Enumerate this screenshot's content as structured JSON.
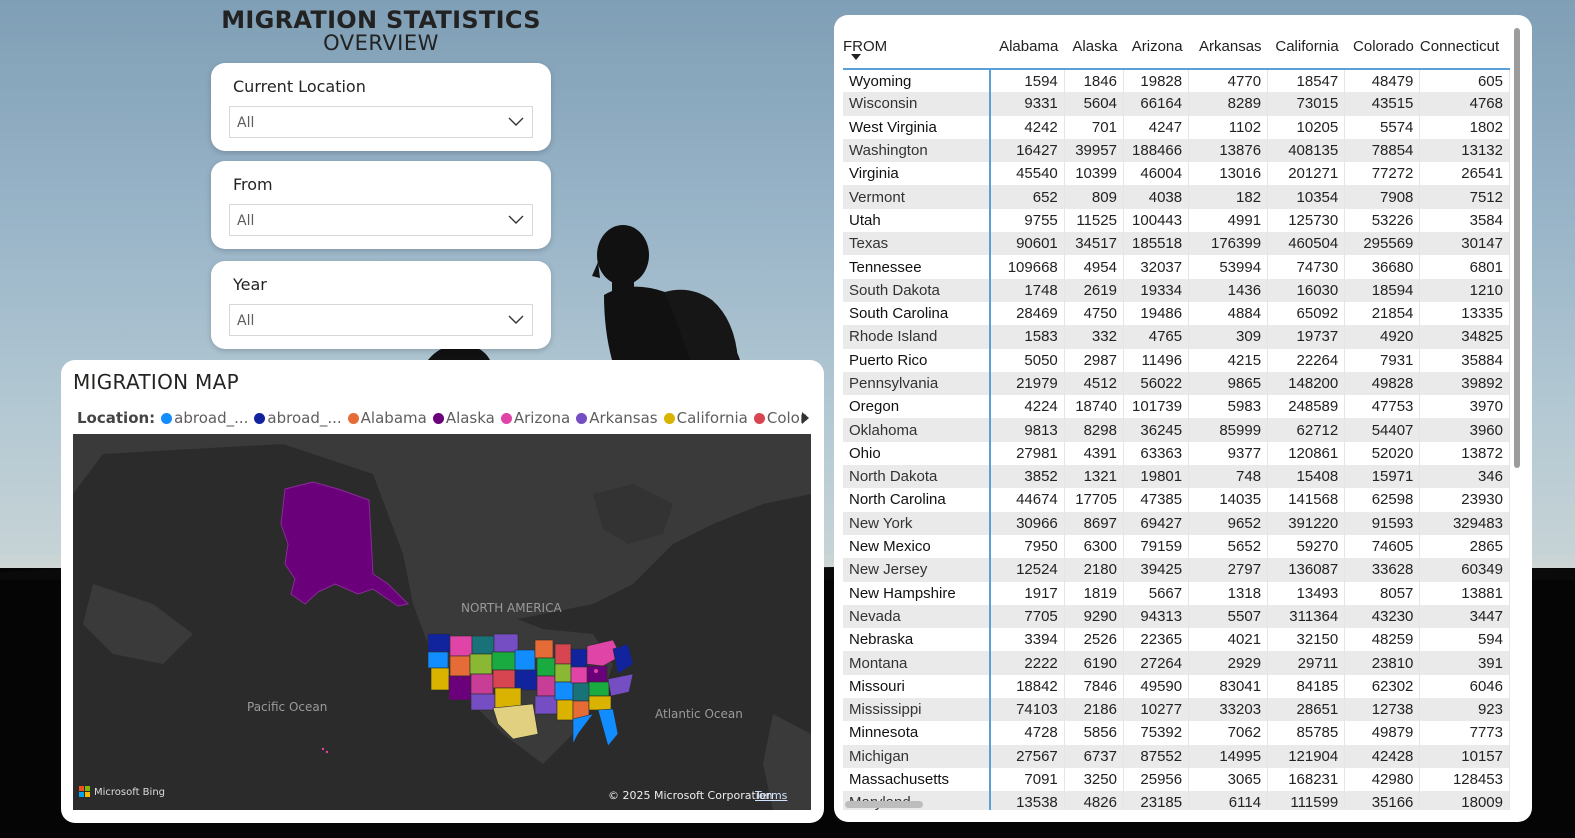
{
  "header": {
    "title": "MIGRATION STATISTICS",
    "subtitle": "OVERVIEW"
  },
  "slicers": [
    {
      "label": "Current Location",
      "value": "All"
    },
    {
      "label": "From",
      "value": "All"
    },
    {
      "label": "Year",
      "value": "All"
    }
  ],
  "map": {
    "title": "MIGRATION MAP",
    "legend_label": "Location:",
    "legend_items": [
      {
        "name": "abroad_...",
        "color": "#118dff"
      },
      {
        "name": "abroad_...",
        "color": "#12239e"
      },
      {
        "name": "Alabama",
        "color": "#e66c37"
      },
      {
        "name": "Alaska",
        "color": "#6b007b"
      },
      {
        "name": "Arizona",
        "color": "#e044a7"
      },
      {
        "name": "Arkansas",
        "color": "#744ec2"
      },
      {
        "name": "California",
        "color": "#d9b300"
      },
      {
        "name": "Colorado",
        "color": "#d64550"
      }
    ],
    "labels": {
      "north_america": "NORTH AMERICA",
      "pacific": "Pacific Ocean",
      "atlantic": "Atlantic Ocean"
    },
    "bing": "Microsoft Bing",
    "copyright": "© 2025 Microsoft Corporation",
    "terms": "Terms"
  },
  "table": {
    "columns": [
      "FROM",
      "Alabama",
      "Alaska",
      "Arizona",
      "Arkansas",
      "California",
      "Colorado",
      "Connecticut"
    ],
    "rows": [
      [
        "Wyoming",
        "1594",
        "1846",
        "19828",
        "4770",
        "18547",
        "48479",
        "605"
      ],
      [
        "Wisconsin",
        "9331",
        "5604",
        "66164",
        "8289",
        "73015",
        "43515",
        "4768"
      ],
      [
        "West Virginia",
        "4242",
        "701",
        "4247",
        "1102",
        "10205",
        "5574",
        "1802"
      ],
      [
        "Washington",
        "16427",
        "39957",
        "188466",
        "13876",
        "408135",
        "78854",
        "13132"
      ],
      [
        "Virginia",
        "45540",
        "10399",
        "46004",
        "13016",
        "201271",
        "77272",
        "26541"
      ],
      [
        "Vermont",
        "652",
        "809",
        "4038",
        "182",
        "10354",
        "7908",
        "7512"
      ],
      [
        "Utah",
        "9755",
        "11525",
        "100443",
        "4991",
        "125730",
        "53226",
        "3584"
      ],
      [
        "Texas",
        "90601",
        "34517",
        "185518",
        "176399",
        "460504",
        "295569",
        "30147"
      ],
      [
        "Tennessee",
        "109668",
        "4954",
        "32037",
        "53994",
        "74730",
        "36680",
        "6801"
      ],
      [
        "South Dakota",
        "1748",
        "2619",
        "19334",
        "1436",
        "16030",
        "18594",
        "1210"
      ],
      [
        "South Carolina",
        "28469",
        "4750",
        "19486",
        "4884",
        "65092",
        "21854",
        "13335"
      ],
      [
        "Rhode Island",
        "1583",
        "332",
        "4765",
        "309",
        "19737",
        "4920",
        "34825"
      ],
      [
        "Puerto Rico",
        "5050",
        "2987",
        "11496",
        "4215",
        "22264",
        "7931",
        "35884"
      ],
      [
        "Pennsylvania",
        "21979",
        "4512",
        "56022",
        "9865",
        "148200",
        "49828",
        "39892"
      ],
      [
        "Oregon",
        "4224",
        "18740",
        "101739",
        "5983",
        "248589",
        "47753",
        "3970"
      ],
      [
        "Oklahoma",
        "9813",
        "8298",
        "36245",
        "85999",
        "62712",
        "54407",
        "3960"
      ],
      [
        "Ohio",
        "27981",
        "4391",
        "63363",
        "9377",
        "120861",
        "52020",
        "13872"
      ],
      [
        "North Dakota",
        "3852",
        "1321",
        "19801",
        "748",
        "15408",
        "15971",
        "346"
      ],
      [
        "North Carolina",
        "44674",
        "17705",
        "47385",
        "14035",
        "141568",
        "62598",
        "23930"
      ],
      [
        "New York",
        "30966",
        "8697",
        "69427",
        "9652",
        "391220",
        "91593",
        "329483"
      ],
      [
        "New Mexico",
        "7950",
        "6300",
        "79159",
        "5652",
        "59270",
        "74605",
        "2865"
      ],
      [
        "New Jersey",
        "12524",
        "2180",
        "39425",
        "2797",
        "136087",
        "33628",
        "60349"
      ],
      [
        "New Hampshire",
        "1917",
        "1819",
        "5667",
        "1318",
        "13493",
        "8057",
        "13881"
      ],
      [
        "Nevada",
        "7705",
        "9290",
        "94313",
        "5507",
        "311364",
        "43230",
        "3447"
      ],
      [
        "Nebraska",
        "3394",
        "2526",
        "22365",
        "4021",
        "32150",
        "48259",
        "594"
      ],
      [
        "Montana",
        "2222",
        "6190",
        "27264",
        "2929",
        "29711",
        "23810",
        "391"
      ],
      [
        "Missouri",
        "18842",
        "7846",
        "49590",
        "83041",
        "84185",
        "62302",
        "6046"
      ],
      [
        "Mississippi",
        "74103",
        "2186",
        "10277",
        "33203",
        "28651",
        "12738",
        "923"
      ],
      [
        "Minnesota",
        "4728",
        "5856",
        "75392",
        "7062",
        "85785",
        "49879",
        "7773"
      ],
      [
        "Michigan",
        "27567",
        "6737",
        "87552",
        "14995",
        "121904",
        "42428",
        "10157"
      ],
      [
        "Massachusetts",
        "7091",
        "3250",
        "25956",
        "3065",
        "168231",
        "42980",
        "128453"
      ],
      [
        "Maryland",
        "13538",
        "4826",
        "23185",
        "6114",
        "111599",
        "35166",
        "18009"
      ]
    ]
  }
}
